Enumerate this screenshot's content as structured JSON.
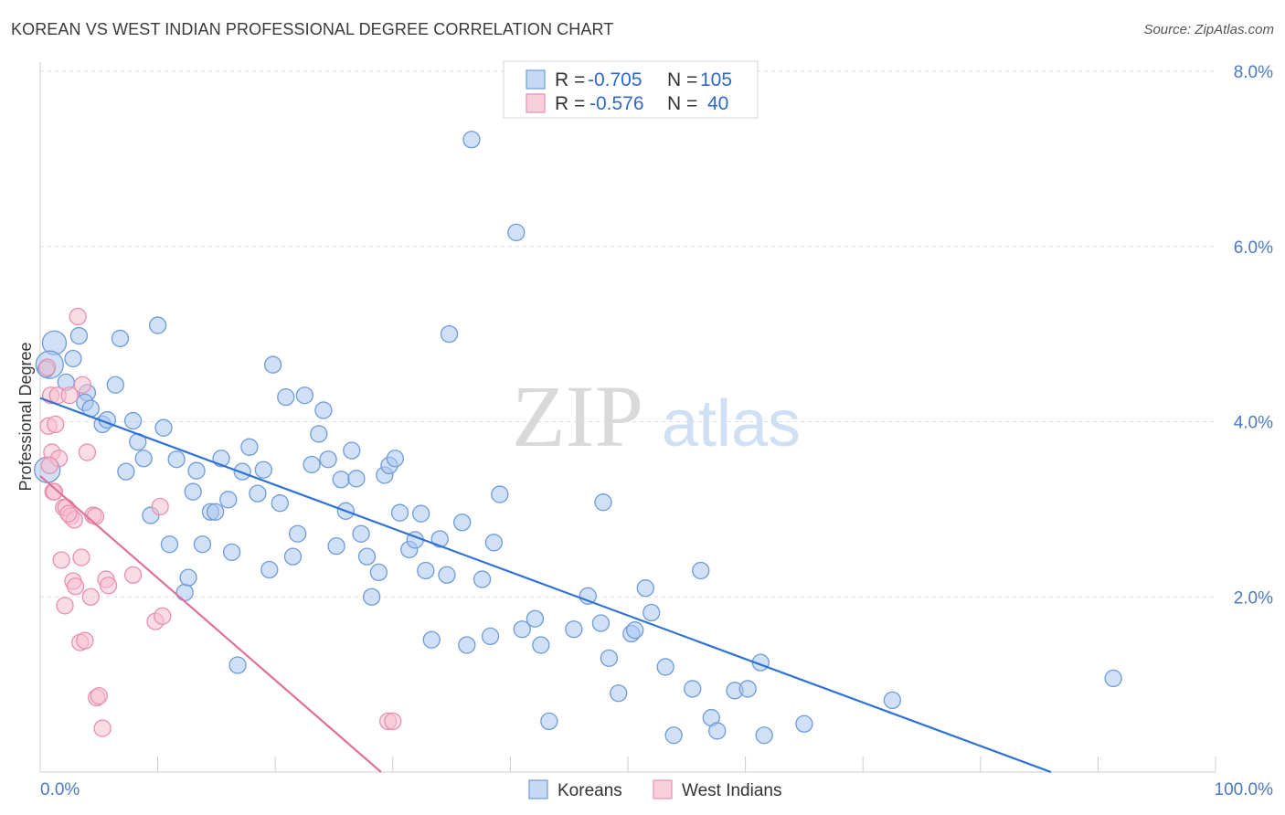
{
  "header": {
    "title": "KOREAN VS WEST INDIAN PROFESSIONAL DEGREE CORRELATION CHART",
    "source": "Source: ZipAtlas.com"
  },
  "watermark": {
    "zip": "ZIP",
    "atlas": "atlas"
  },
  "colors": {
    "korean_fill": "#a9c6ef",
    "korean_stroke": "#6f9bd8",
    "korean_line": "#2f72d6",
    "westindian_fill": "#f6bfd0",
    "westindian_stroke": "#e98fae",
    "westindian_line": "#e0709a",
    "tick_text": "#4a78c8",
    "grid": "#dedede"
  },
  "legend": {
    "rows": [
      {
        "r_label": "R =",
        "r_value": "-0.705",
        "n_label": "N =",
        "n_value": "105"
      },
      {
        "r_label": "R =",
        "r_value": "-0.576",
        "n_label": "N =",
        "n_value": "40"
      }
    ]
  },
  "bottom_legend": {
    "items": [
      "Koreans",
      "West Indians"
    ]
  },
  "chart_data": {
    "type": "scatter",
    "xlabel": "",
    "ylabel": "Professional Degree",
    "xlim": [
      0,
      100
    ],
    "ylim": [
      0,
      8
    ],
    "x_tick_labels": [
      "0.0%",
      "100.0%"
    ],
    "y_ticks": [
      2,
      4,
      6,
      8
    ],
    "y_tick_labels": [
      "2.0%",
      "4.0%",
      "6.0%",
      "8.0%"
    ],
    "grid": true,
    "series": [
      {
        "name": "Koreans",
        "trend": {
          "x": [
            0,
            86
          ],
          "y": [
            4.27,
            0.0
          ]
        },
        "points": [
          [
            1.2,
            4.9,
            13
          ],
          [
            0.8,
            4.65,
            15
          ],
          [
            0.6,
            3.45,
            14
          ],
          [
            2.2,
            4.45,
            9
          ],
          [
            2.8,
            4.72,
            9
          ],
          [
            3.3,
            4.98,
            9
          ],
          [
            4.0,
            4.33,
            9
          ],
          [
            3.8,
            4.22,
            9
          ],
          [
            4.3,
            4.15,
            9
          ],
          [
            5.3,
            3.97,
            9
          ],
          [
            5.7,
            4.02,
            9
          ],
          [
            6.4,
            4.42,
            9
          ],
          [
            6.8,
            4.95,
            9
          ],
          [
            7.3,
            3.43,
            9
          ],
          [
            7.9,
            4.01,
            9
          ],
          [
            8.3,
            3.77,
            9
          ],
          [
            8.8,
            3.58,
            9
          ],
          [
            9.4,
            2.93,
            9
          ],
          [
            10.0,
            5.1,
            9
          ],
          [
            10.5,
            3.93,
            9
          ],
          [
            11.0,
            2.6,
            9
          ],
          [
            11.6,
            3.57,
            9
          ],
          [
            12.3,
            2.05,
            9
          ],
          [
            12.6,
            2.22,
            9
          ],
          [
            13.0,
            3.2,
            9
          ],
          [
            13.3,
            3.44,
            9
          ],
          [
            13.8,
            2.6,
            9
          ],
          [
            14.5,
            2.97,
            9
          ],
          [
            14.9,
            2.97,
            9
          ],
          [
            15.4,
            3.58,
            9
          ],
          [
            16.0,
            3.11,
            9
          ],
          [
            16.3,
            2.51,
            9
          ],
          [
            16.8,
            1.22,
            9
          ],
          [
            17.2,
            3.43,
            9
          ],
          [
            17.8,
            3.71,
            9
          ],
          [
            18.5,
            3.18,
            9
          ],
          [
            19.0,
            3.45,
            9
          ],
          [
            19.5,
            2.31,
            9
          ],
          [
            19.8,
            4.65,
            9
          ],
          [
            20.4,
            3.07,
            9
          ],
          [
            20.9,
            4.28,
            9
          ],
          [
            21.5,
            2.46,
            9
          ],
          [
            21.9,
            2.72,
            9
          ],
          [
            22.5,
            4.3,
            9
          ],
          [
            23.1,
            3.51,
            9
          ],
          [
            23.7,
            3.86,
            9
          ],
          [
            24.1,
            4.13,
            9
          ],
          [
            24.5,
            3.57,
            9
          ],
          [
            25.2,
            2.58,
            9
          ],
          [
            25.6,
            3.34,
            9
          ],
          [
            26.0,
            2.98,
            9
          ],
          [
            26.5,
            3.67,
            9
          ],
          [
            26.9,
            3.35,
            9
          ],
          [
            27.3,
            2.72,
            9
          ],
          [
            27.8,
            2.46,
            9
          ],
          [
            28.2,
            2.0,
            9
          ],
          [
            28.8,
            2.28,
            9
          ],
          [
            29.3,
            3.39,
            9
          ],
          [
            29.7,
            3.5,
            9
          ],
          [
            30.2,
            3.58,
            9
          ],
          [
            30.6,
            2.96,
            9
          ],
          [
            31.4,
            2.54,
            9
          ],
          [
            31.9,
            2.65,
            9
          ],
          [
            32.4,
            2.95,
            9
          ],
          [
            32.8,
            2.3,
            9
          ],
          [
            33.3,
            1.51,
            9
          ],
          [
            34.0,
            2.66,
            9
          ],
          [
            34.6,
            2.25,
            9
          ],
          [
            34.8,
            5.0,
            9
          ],
          [
            35.9,
            2.85,
            9
          ],
          [
            36.3,
            1.45,
            9
          ],
          [
            36.7,
            7.22,
            9
          ],
          [
            37.6,
            2.2,
            9
          ],
          [
            38.3,
            1.55,
            9
          ],
          [
            38.6,
            2.62,
            9
          ],
          [
            39.1,
            3.17,
            9
          ],
          [
            40.5,
            6.16,
            9
          ],
          [
            41.0,
            1.63,
            9
          ],
          [
            42.1,
            1.75,
            9
          ],
          [
            42.6,
            1.45,
            9
          ],
          [
            43.3,
            0.58,
            9
          ],
          [
            45.4,
            1.63,
            9
          ],
          [
            46.6,
            2.01,
            9
          ],
          [
            47.7,
            1.7,
            9
          ],
          [
            47.9,
            3.08,
            9
          ],
          [
            48.4,
            1.3,
            9
          ],
          [
            49.2,
            0.9,
            9
          ],
          [
            50.3,
            1.58,
            9
          ],
          [
            50.6,
            1.62,
            9
          ],
          [
            51.5,
            2.1,
            9
          ],
          [
            52.0,
            1.82,
            9
          ],
          [
            53.2,
            1.2,
            9
          ],
          [
            53.9,
            0.42,
            9
          ],
          [
            55.5,
            0.95,
            9
          ],
          [
            56.2,
            2.3,
            9
          ],
          [
            57.1,
            0.62,
            9
          ],
          [
            57.6,
            0.47,
            9
          ],
          [
            59.1,
            0.93,
            9
          ],
          [
            60.2,
            0.95,
            9
          ],
          [
            61.3,
            1.25,
            9
          ],
          [
            61.6,
            0.42,
            9
          ],
          [
            65.0,
            0.55,
            9
          ],
          [
            72.5,
            0.82,
            9
          ],
          [
            91.3,
            1.07,
            9
          ],
          [
            0.5,
            4.6,
            9
          ]
        ]
      },
      {
        "name": "West Indians",
        "trend": {
          "x": [
            0,
            29
          ],
          "y": [
            3.38,
            0.0
          ]
        },
        "points": [
          [
            0.6,
            4.62,
            9
          ],
          [
            0.9,
            4.3,
            9
          ],
          [
            0.7,
            3.95,
            9
          ],
          [
            1.0,
            3.65,
            9
          ],
          [
            1.1,
            3.2,
            9
          ],
          [
            1.3,
            3.97,
            9
          ],
          [
            1.5,
            4.3,
            9
          ],
          [
            1.6,
            3.58,
            9
          ],
          [
            1.8,
            2.42,
            9
          ],
          [
            2.0,
            3.02,
            9
          ],
          [
            2.1,
            1.9,
            9
          ],
          [
            2.2,
            3.02,
            9
          ],
          [
            2.5,
            4.3,
            9
          ],
          [
            2.6,
            2.92,
            9
          ],
          [
            2.8,
            2.18,
            9
          ],
          [
            2.9,
            2.88,
            9
          ],
          [
            3.0,
            2.12,
            9
          ],
          [
            3.2,
            5.2,
            9
          ],
          [
            3.4,
            1.48,
            9
          ],
          [
            3.5,
            2.45,
            9
          ],
          [
            3.6,
            4.42,
            9
          ],
          [
            3.8,
            1.5,
            9
          ],
          [
            4.0,
            3.65,
            9
          ],
          [
            4.3,
            2.0,
            9
          ],
          [
            4.5,
            2.93,
            9
          ],
          [
            4.7,
            2.92,
            9
          ],
          [
            4.8,
            0.85,
            9
          ],
          [
            5.0,
            0.87,
            9
          ],
          [
            5.3,
            0.5,
            9
          ],
          [
            5.6,
            2.2,
            9
          ],
          [
            5.8,
            2.13,
            9
          ],
          [
            7.9,
            2.25,
            9
          ],
          [
            9.8,
            1.72,
            9
          ],
          [
            10.2,
            3.03,
            9
          ],
          [
            10.4,
            1.78,
            9
          ],
          [
            1.2,
            3.2,
            9
          ],
          [
            2.4,
            2.95,
            9
          ],
          [
            0.8,
            3.5,
            9
          ],
          [
            29.6,
            0.58,
            9
          ],
          [
            30.0,
            0.58,
            9
          ]
        ]
      }
    ]
  }
}
